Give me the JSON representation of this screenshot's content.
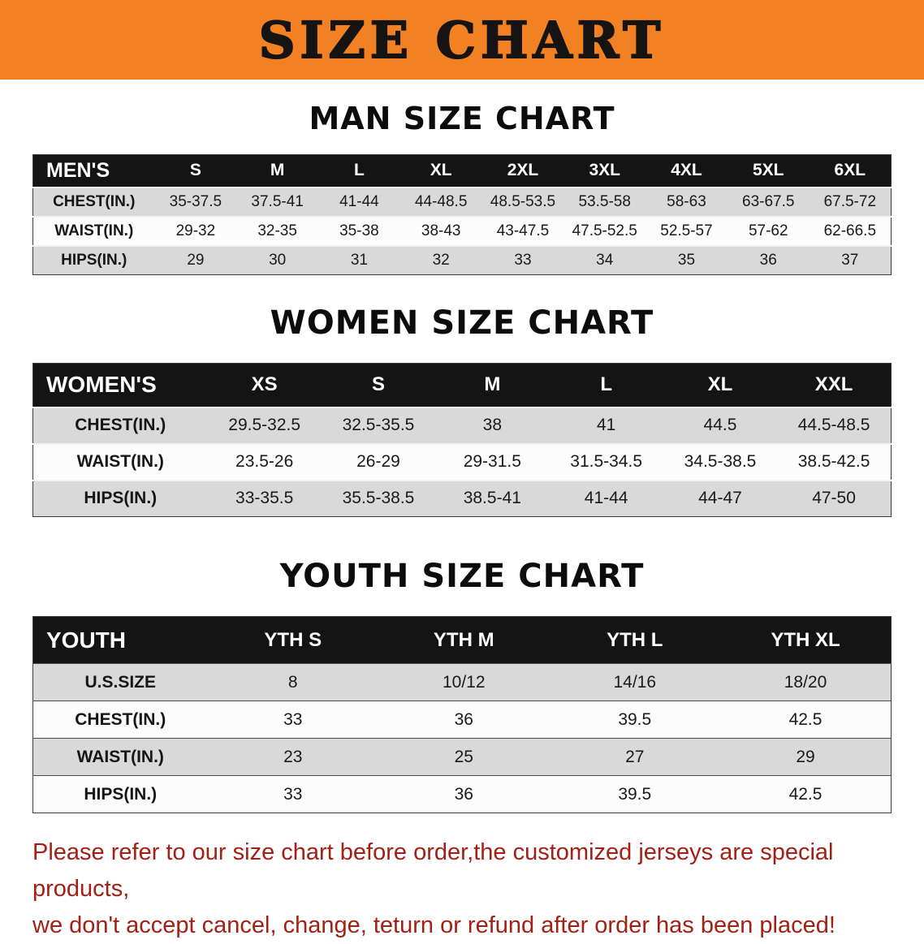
{
  "banner": {
    "title": "SIZE CHART"
  },
  "men": {
    "heading": "MAN SIZE CHART",
    "table": {
      "header": [
        "MEN'S",
        "S",
        "M",
        "L",
        "XL",
        "2XL",
        "3XL",
        "4XL",
        "5XL",
        "6XL"
      ],
      "rows": [
        [
          "CHEST(IN.)",
          "35-37.5",
          "37.5-41",
          "41-44",
          "44-48.5",
          "48.5-53.5",
          "53.5-58",
          "58-63",
          "63-67.5",
          "67.5-72"
        ],
        [
          "WAIST(IN.)",
          "29-32",
          "32-35",
          "35-38",
          "38-43",
          "43-47.5",
          "47.5-52.5",
          "52.5-57",
          "57-62",
          "62-66.5"
        ],
        [
          "HIPS(IN.)",
          "29",
          "30",
          "31",
          "32",
          "33",
          "34",
          "35",
          "36",
          "37"
        ]
      ]
    }
  },
  "women": {
    "heading": "WOMEN SIZE CHART",
    "table": {
      "header": [
        "WOMEN'S",
        "XS",
        "S",
        "M",
        "L",
        "XL",
        "XXL"
      ],
      "rows": [
        [
          "CHEST(IN.)",
          "29.5-32.5",
          "32.5-35.5",
          "38",
          "41",
          "44.5",
          "44.5-48.5"
        ],
        [
          "WAIST(IN.)",
          "23.5-26",
          "26-29",
          "29-31.5",
          "31.5-34.5",
          "34.5-38.5",
          "38.5-42.5"
        ],
        [
          "HIPS(IN.)",
          "33-35.5",
          "35.5-38.5",
          "38.5-41",
          "41-44",
          "44-47",
          "47-50"
        ]
      ]
    }
  },
  "youth": {
    "heading": "YOUTH SIZE CHART",
    "table": {
      "header": [
        "YOUTH",
        "YTH S",
        "YTH M",
        "YTH L",
        "YTH XL"
      ],
      "rows": [
        [
          "U.S.SIZE",
          "8",
          "10/12",
          "14/16",
          "18/20"
        ],
        [
          "CHEST(IN.)",
          "33",
          "36",
          "39.5",
          "42.5"
        ],
        [
          "WAIST(IN.)",
          "23",
          "25",
          "27",
          "29"
        ],
        [
          "HIPS(IN.)",
          "33",
          "36",
          "39.5",
          "42.5"
        ]
      ]
    }
  },
  "footer": {
    "line1": "Please refer to our size chart before order,the customized jerseys are special products,",
    "line2": "we don't accept cancel, change, teturn or refund after order has been placed!"
  },
  "colors": {
    "banner_bg": "#f28123",
    "header_bg": "#141414",
    "row_alt": "#d9d9d9",
    "note_red": "#a32016"
  }
}
